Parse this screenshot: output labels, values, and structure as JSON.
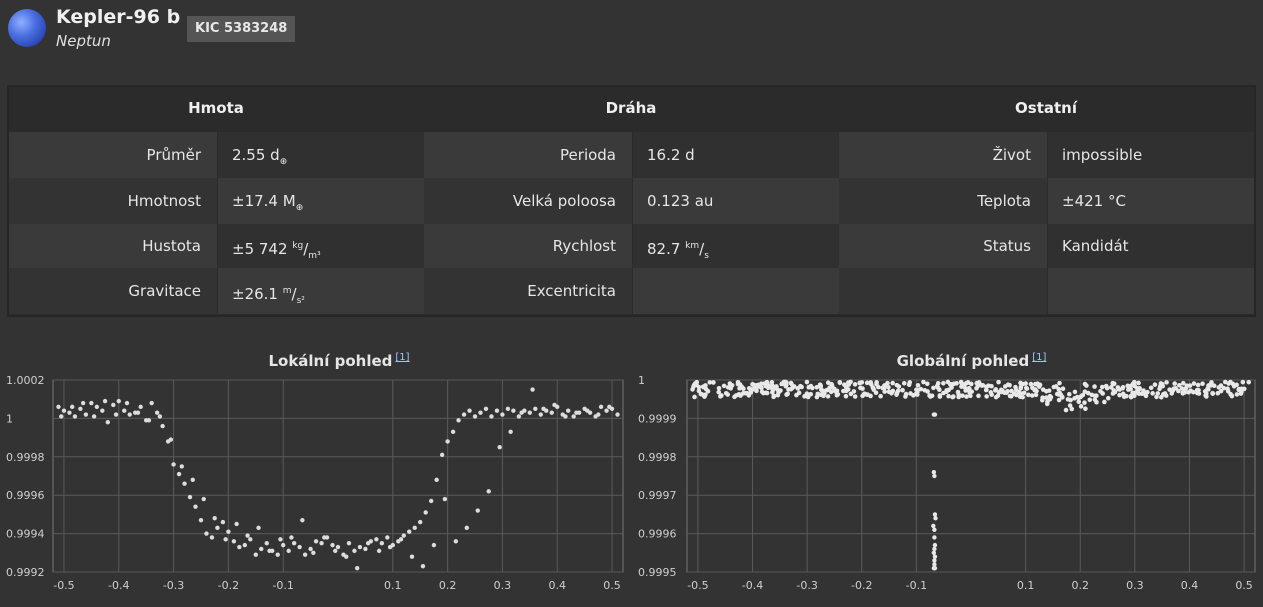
{
  "header": {
    "planet_icon": "neptune-planet-icon",
    "name": "Kepler-96 b",
    "type": "Neptun",
    "kic": "KIC 5383248"
  },
  "properties": {
    "columns": [
      "Hmota",
      "Dráha",
      "Ostatní"
    ],
    "mass": [
      {
        "label": "Průměr",
        "value": "2.55 d",
        "unit_html": "<sub>⊕</sub>"
      },
      {
        "label": "Hmotnost",
        "value": "±17.4 M",
        "unit_html": "<sub>⊕</sub>"
      },
      {
        "label": "Hustota",
        "value": "±5 742 ",
        "unit_html": "<sup>kg</sup>/<sub>m³</sub>"
      },
      {
        "label": "Gravitace",
        "value": "±26.1 ",
        "unit_html": "<sup>m</sup>/<sub>s²</sub>"
      }
    ],
    "orbit": [
      {
        "label": "Perioda",
        "value": "16.2 d",
        "unit_html": ""
      },
      {
        "label": "Velká poloosa",
        "value": "0.123 au",
        "unit_html": ""
      },
      {
        "label": "Rychlost",
        "value": "82.7 ",
        "unit_html": "<sup>km</sup>/<sub>s</sub>"
      },
      {
        "label": "Excentricita",
        "value": "",
        "unit_html": ""
      }
    ],
    "other": [
      {
        "label": "Život",
        "value": "impossible",
        "unit_html": ""
      },
      {
        "label": "Teplota",
        "value": "±421 °C",
        "unit_html": ""
      },
      {
        "label": "Status",
        "value": "Kandidát",
        "unit_html": ""
      },
      {
        "label": "",
        "value": "",
        "unit_html": ""
      }
    ]
  },
  "charts": {
    "local_title": "Lokální pohled",
    "global_title": "Globální pohled",
    "ref": "[1]"
  },
  "chart_data": [
    {
      "type": "scatter",
      "title": "Lokální pohled",
      "xlim": [
        -0.52,
        0.52
      ],
      "ylim": [
        0.9992,
        1.0002
      ],
      "xticks": [
        -0.5,
        -0.4,
        -0.3,
        -0.2,
        -0.1,
        0.1,
        0.2,
        0.3,
        0.4,
        0.5
      ],
      "yticks": [
        1.0002,
        1,
        0.9998,
        0.9996,
        0.9994,
        0.9992
      ],
      "ytick_labels": [
        "1.0002",
        "1",
        "0.9998",
        "0.9996",
        "0.9994",
        "0.9992"
      ],
      "grid": true,
      "series": [
        {
          "x": [
            -0.51,
            -0.5,
            -0.49,
            -0.48,
            -0.47,
            -0.46,
            -0.45,
            -0.44,
            -0.43,
            -0.42,
            -0.41,
            -0.4,
            -0.39,
            -0.38,
            -0.37,
            -0.36,
            -0.35,
            -0.34,
            -0.33,
            -0.32,
            -0.31,
            -0.3,
            -0.29,
            -0.28,
            -0.27,
            -0.26,
            -0.25,
            -0.24,
            -0.23,
            -0.22,
            -0.21,
            -0.2,
            -0.19,
            -0.18,
            -0.17,
            -0.16,
            -0.15,
            -0.14,
            -0.13,
            -0.12,
            -0.11,
            -0.1,
            -0.09,
            -0.08,
            -0.07,
            -0.06,
            -0.05,
            -0.04,
            -0.03,
            -0.02,
            -0.01,
            0.0,
            0.01,
            0.02,
            0.03,
            0.04,
            0.05,
            0.06,
            0.07,
            0.08,
            0.09,
            0.1,
            0.11,
            0.12,
            0.13,
            0.14,
            0.15,
            0.16,
            0.17,
            0.18,
            0.19,
            0.2,
            0.21,
            0.22,
            0.23,
            0.24,
            0.25,
            0.26,
            0.27,
            0.28,
            0.29,
            0.3,
            0.31,
            0.32,
            0.33,
            0.34,
            0.35,
            0.36,
            0.37,
            0.38,
            0.39,
            0.4,
            0.41,
            0.42,
            0.43,
            0.44,
            0.45,
            0.46,
            0.47,
            0.48,
            0.49,
            0.5,
            0.51,
            -0.505,
            -0.485,
            -0.465,
            -0.445,
            -0.425,
            -0.405,
            -0.385,
            -0.365,
            -0.345,
            -0.325,
            -0.305,
            -0.285,
            -0.265,
            -0.245,
            -0.225,
            -0.205,
            -0.185,
            -0.165,
            -0.145,
            -0.125,
            -0.105,
            -0.085,
            -0.065,
            -0.045,
            -0.025,
            -0.005,
            0.015,
            0.035,
            0.055,
            0.075,
            0.095,
            0.115,
            0.135,
            0.155,
            0.175,
            0.195,
            0.215,
            0.235,
            0.255,
            0.275,
            0.295,
            0.315,
            0.335,
            0.355,
            0.375,
            0.395,
            0.415,
            0.435,
            0.455,
            0.475,
            0.495
          ],
          "y": [
            1.00006,
            1.00004,
            1.00003,
            1.00001,
            1.00005,
            1.00002,
            1.00008,
            1.00006,
            1.00004,
            0.99998,
            1.00007,
            1.00009,
            1.00004,
            1.00002,
            1.00003,
            1.00006,
            0.99999,
            1.00008,
            1.00003,
            0.99996,
            0.99988,
            0.99976,
            0.99971,
            0.99966,
            0.99959,
            0.99954,
            0.99947,
            0.9994,
            0.99938,
            0.99943,
            0.99946,
            0.99941,
            0.99936,
            0.99933,
            0.99934,
            0.99937,
            0.99929,
            0.99932,
            0.99935,
            0.99931,
            0.99929,
            0.99934,
            0.99931,
            0.99935,
            0.99933,
            0.99929,
            0.99932,
            0.99936,
            0.99935,
            0.99938,
            0.99934,
            0.99933,
            0.99929,
            0.99935,
            0.99931,
            0.99933,
            0.99932,
            0.99936,
            0.99937,
            0.99935,
            0.99938,
            0.99934,
            0.99936,
            0.99939,
            0.99941,
            0.99943,
            0.99946,
            0.99951,
            0.99957,
            0.99968,
            0.99981,
            0.99988,
            0.99993,
            0.99999,
            1.00002,
            1.00004,
            1.00001,
            1.00003,
            1.00005,
            1.00001,
            1.00004,
            1.00002,
            1.00005,
            1.00004,
            1.00001,
            1.00004,
            1.00003,
            1.00005,
            1.00002,
            1.00004,
            1.00003,
            1.00006,
            1.00002,
            1.00004,
            1.00001,
            1.00003,
            1.00005,
            1.00003,
            1.00001,
            1.00006,
            1.00004,
            1.00005,
            1.00002,
            1.00001,
            1.00006,
            1.00008,
            1.00001,
            1.00009,
            1.00002,
            1.00008,
            1.00003,
            0.99999,
            1.00001,
            0.99989,
            0.99975,
            0.99968,
            0.99958,
            0.99948,
            0.99937,
            0.99945,
            0.99939,
            0.99943,
            0.99931,
            0.99937,
            0.99938,
            0.99947,
            0.9993,
            0.99938,
            0.99931,
            0.99928,
            0.99922,
            0.99935,
            0.99931,
            0.99933,
            0.99937,
            0.99928,
            0.99923,
            0.99934,
            0.99958,
            0.99936,
            0.99943,
            0.99952,
            0.99962,
            0.99985,
            0.99993,
            1.00003,
            1.00015,
            1.00005,
            1.00007,
            1.00001,
            1.00003,
            1.00004,
            1.00002,
            1.00006
          ]
        }
      ]
    },
    {
      "type": "scatter",
      "title": "Globální pohled",
      "xlim": [
        -0.52,
        0.52
      ],
      "ylim": [
        0.9995,
        1.0
      ],
      "xticks": [
        -0.5,
        -0.4,
        -0.3,
        -0.2,
        -0.1,
        0.1,
        0.2,
        0.3,
        0.4,
        0.5
      ],
      "yticks": [
        1,
        0.9999,
        0.9998,
        0.9997,
        0.9996,
        0.9995
      ],
      "ytick_labels": [
        "1",
        "0.9999",
        "0.9998",
        "0.9997",
        "0.9996",
        "0.9995"
      ],
      "grid": true,
      "dip_points": {
        "x": [
          -0.068,
          -0.066,
          -0.068,
          -0.067,
          -0.066,
          -0.065,
          -0.069,
          -0.067,
          -0.067,
          -0.066,
          -0.067,
          -0.068,
          -0.066,
          -0.067,
          -0.067,
          -0.068,
          -0.066
        ],
        "y": [
          0.99991,
          0.99991,
          0.99976,
          0.99975,
          0.99965,
          0.99964,
          0.99962,
          0.99961,
          0.99959,
          0.99957,
          0.99956,
          0.99955,
          0.99954,
          0.99953,
          0.99952,
          0.99951,
          0.99951
        ]
      }
    }
  ]
}
